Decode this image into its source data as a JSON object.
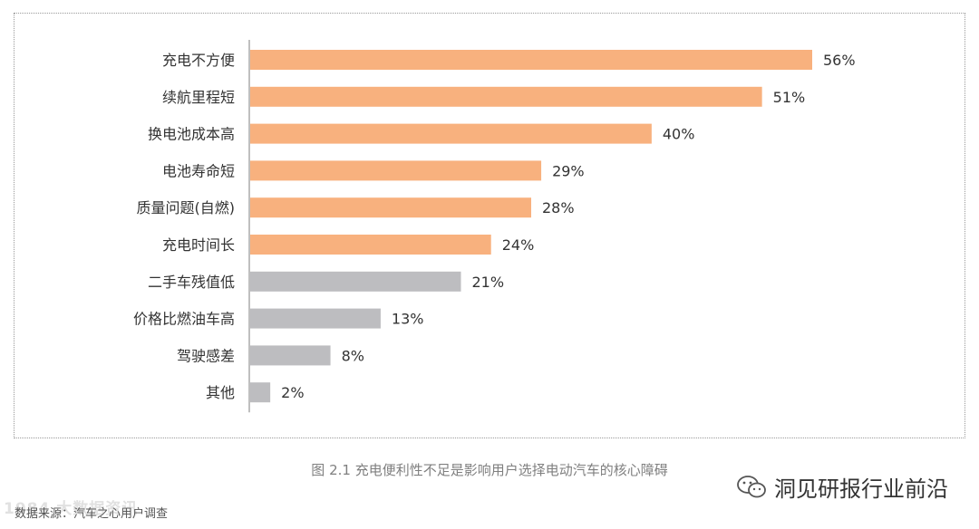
{
  "chart_data": {
    "type": "bar",
    "orientation": "horizontal",
    "categories": [
      "充电不方便",
      "续航里程短",
      "换电池成本高",
      "电池寿命短",
      "质量问题(自燃)",
      "充电时间长",
      "二手车残值低",
      "价格比燃油车高",
      "驾驶感差",
      "其他"
    ],
    "values": [
      56,
      51,
      40,
      29,
      28,
      24,
      21,
      13,
      8,
      2
    ],
    "value_labels": [
      "56%",
      "51%",
      "40%",
      "29%",
      "28%",
      "24%",
      "21%",
      "13%",
      "8%",
      "2%"
    ],
    "highlight_count": 6,
    "colors": {
      "highlight": "#f8b17e",
      "normal": "#bdbdc0",
      "axis": "#7f7f7f",
      "label": "#333333"
    },
    "xlim": [
      0,
      60
    ],
    "grid": false
  },
  "caption": "图 2.1 充电便利性不足是影响用户选择电动汽车的核心障碍",
  "source": "数据来源：汽车之心用户调查",
  "watermark": "1984 大数据资讯",
  "brand": {
    "icon": "wechat-icon",
    "name": "洞见研报行业前沿"
  }
}
